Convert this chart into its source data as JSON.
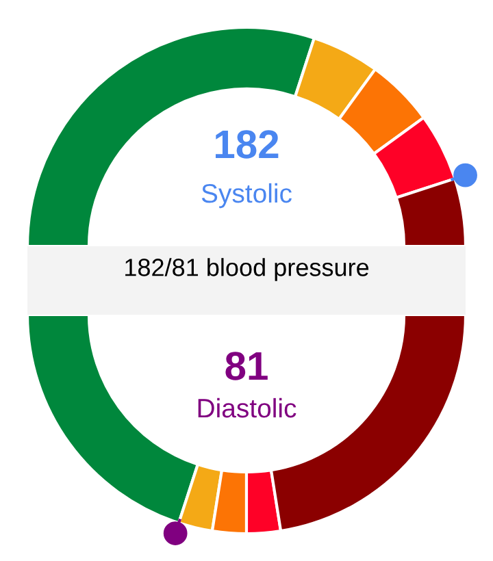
{
  "chart_data": [
    {
      "type": "donut",
      "title": "182/81 blood pressure",
      "categories": [
        null,
        null,
        null,
        null,
        null
      ],
      "values": [
        60,
        10,
        10,
        10,
        10
      ],
      "colors": [
        "#00873c",
        "#f4a916",
        "#fc7405",
        "#fe0127",
        "#8b0000"
      ],
      "color": "#4a86f0",
      "annotations": [
        "182",
        "Systolic"
      ]
    },
    {
      "type": "donut",
      "categories": [
        null,
        null,
        null,
        null,
        null
      ],
      "values": [
        40,
        5,
        5,
        5,
        45
      ],
      "colors": [
        "#00873c",
        "#f4a916",
        "#fc7405",
        "#fe0127",
        "#8b0000"
      ],
      "color": "#800080",
      "annotations": [
        "81",
        "Diastolic"
      ]
    }
  ]
}
